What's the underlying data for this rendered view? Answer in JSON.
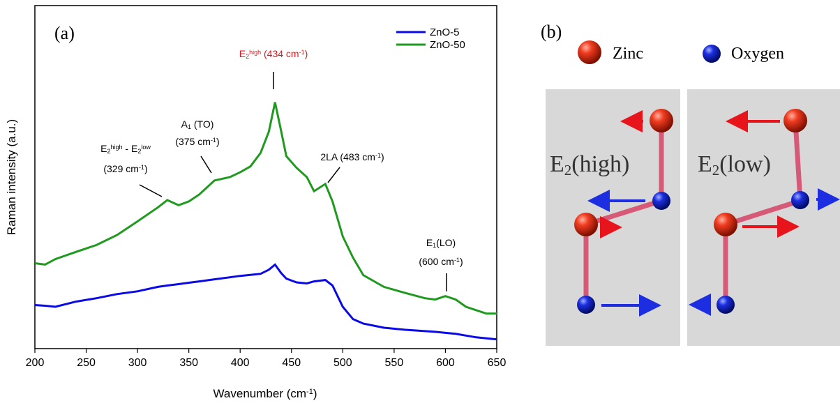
{
  "chart_data": {
    "type": "line",
    "panel_label": "(a)",
    "x_label": {
      "parts": [
        {
          "t": "Wavenumber (cm"
        },
        {
          "t": "-1",
          "sup": true
        },
        {
          "t": ")"
        }
      ]
    },
    "y_label": "Raman intensity (a.u.)",
    "x": [
      200,
      210,
      220,
      240,
      260,
      280,
      300,
      320,
      329,
      340,
      350,
      360,
      375,
      390,
      400,
      410,
      420,
      428,
      434,
      440,
      445,
      455,
      465,
      472,
      483,
      490,
      500,
      510,
      520,
      540,
      560,
      580,
      590,
      600,
      610,
      620,
      630,
      640,
      650
    ],
    "series": [
      {
        "name": "ZnO-5",
        "color": "#0a0ae6",
        "values": [
          12.7,
          12.5,
          12.2,
          13.7,
          14.7,
          15.9,
          16.7,
          18.0,
          18.4,
          18.8,
          19.2,
          19.6,
          20.2,
          20.8,
          21.2,
          21.5,
          21.8,
          23.0,
          24.5,
          22.0,
          20.4,
          19.3,
          19.0,
          19.6,
          20.0,
          18.4,
          12.2,
          8.6,
          7.3,
          6.1,
          5.5,
          5.1,
          4.9,
          4.6,
          4.3,
          3.8,
          3.3,
          3.0,
          2.7
        ]
      },
      {
        "name": "ZnO-50",
        "color": "#1f9a1f",
        "values": [
          24.9,
          24.5,
          26.1,
          28.2,
          30.2,
          33.1,
          37.1,
          41.2,
          43.3,
          41.8,
          42.9,
          44.9,
          49.0,
          50.0,
          51.4,
          53.1,
          57.1,
          63.3,
          71.8,
          63.3,
          56.1,
          52.7,
          50.0,
          45.9,
          48.0,
          42.9,
          32.7,
          26.5,
          21.4,
          18.0,
          16.3,
          14.7,
          14.3,
          15.3,
          14.3,
          12.2,
          11.2,
          10.2,
          10.2
        ]
      }
    ],
    "xlim": [
      200,
      650
    ],
    "ylim": [
      0,
      100
    ],
    "xticks": [
      200,
      250,
      300,
      350,
      400,
      450,
      500,
      550,
      600,
      650
    ],
    "legend": "upper right",
    "annotations": [
      {
        "color": "#000000",
        "lines": [
          [
            {
              "t": "E"
            },
            {
              "t": "2",
              "sub": true
            },
            {
              "t": "high",
              "sup": true
            },
            {
              "t": " - E"
            },
            {
              "t": "2",
              "sub": true
            },
            {
              "t": "low",
              "sup": true
            }
          ],
          [
            {
              "t": "(329 cm"
            },
            {
              "t": "-1",
              "sup": true
            },
            {
              "t": ")"
            }
          ]
        ]
      },
      {
        "color": "#000000",
        "lines": [
          [
            {
              "t": "A"
            },
            {
              "t": "1",
              "sub": true
            },
            {
              "t": " (TO)"
            }
          ],
          [
            {
              "t": "(375 cm"
            },
            {
              "t": "-1",
              "sup": true
            },
            {
              "t": ")"
            }
          ]
        ]
      },
      {
        "color": "#e8141c",
        "lines": [
          [
            {
              "t": "E"
            },
            {
              "t": "2",
              "sub": true
            },
            {
              "t": "high",
              "sup": true
            },
            {
              "t": " (434 cm"
            },
            {
              "t": "-1",
              "sup": true
            },
            {
              "t": ")"
            }
          ]
        ]
      },
      {
        "color": "#000000",
        "lines": [
          [
            {
              "t": "2LA (483 cm"
            },
            {
              "t": "-1",
              "sup": true
            },
            {
              "t": ")"
            }
          ]
        ]
      },
      {
        "color": "#000000",
        "lines": [
          [
            {
              "t": "E"
            },
            {
              "t": "1",
              "sub": true
            },
            {
              "t": "(LO)"
            }
          ],
          [
            {
              "t": "(600 cm"
            },
            {
              "t": "-1",
              "sup": true
            },
            {
              "t": ")"
            }
          ]
        ]
      }
    ]
  },
  "diagram": {
    "panel_label": "(b)",
    "legend": [
      "Zinc",
      "Oxygen"
    ],
    "modes": [
      [
        {
          "t": "E"
        },
        {
          "t": "2",
          "sub": true
        },
        {
          "t": "(high)"
        }
      ],
      [
        {
          "t": "E"
        },
        {
          "t": "2",
          "sub": true
        },
        {
          "t": "(low)"
        }
      ]
    ]
  }
}
